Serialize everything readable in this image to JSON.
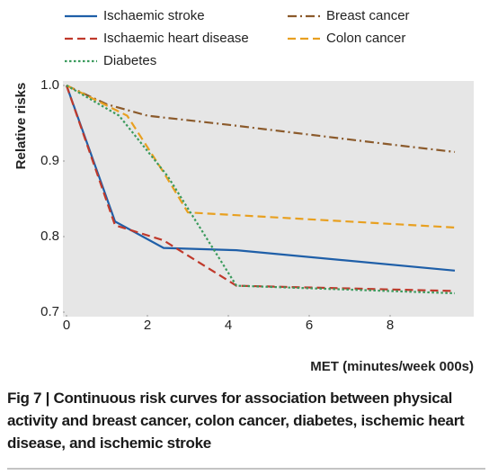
{
  "chart_data": {
    "type": "line",
    "ylabel": "Relative risks",
    "xlabel": "MET (minutes/week 000s)",
    "caption": "Fig 7 | Continuous risk curves for association between physical activity and breast cancer, colon cancer, diabetes, ischemic heart disease, and ischemic stroke",
    "xlim": [
      0,
      10
    ],
    "ylim": [
      0.7,
      1.0
    ],
    "xticks": [
      0,
      2,
      4,
      6,
      8
    ],
    "yticks": [
      {
        "value": 1,
        "label": "1.0"
      },
      0.9,
      0.8,
      0.7
    ],
    "series": [
      {
        "name": "Ischaemic stroke",
        "color": "#1f5fa8",
        "style": "solid",
        "x": [
          0,
          1.2,
          2.4,
          4.2,
          9.6
        ],
        "values": [
          1.0,
          0.82,
          0.785,
          0.782,
          0.755
        ]
      },
      {
        "name": "Breast cancer",
        "color": "#8b5a2b",
        "style": "dashdot",
        "x": [
          0,
          1,
          2,
          4,
          6,
          8,
          9.6
        ],
        "values": [
          1.0,
          0.975,
          0.96,
          0.948,
          0.935,
          0.922,
          0.912
        ]
      },
      {
        "name": "Ischaemic heart disease",
        "color": "#c0392b",
        "style": "dashed",
        "x": [
          0,
          1.2,
          2.4,
          4.2,
          9.6
        ],
        "values": [
          1.0,
          0.815,
          0.795,
          0.735,
          0.728
        ]
      },
      {
        "name": "Colon cancer",
        "color": "#e8a020",
        "style": "dashed",
        "x": [
          0,
          1.5,
          2.4,
          3,
          9.6
        ],
        "values": [
          1.0,
          0.96,
          0.885,
          0.832,
          0.812
        ]
      },
      {
        "name": "Diabetes",
        "color": "#3a9a5c",
        "style": "dotted",
        "x": [
          0,
          1.3,
          2.5,
          4.2,
          9.6
        ],
        "values": [
          1.0,
          0.96,
          0.88,
          0.735,
          0.725
        ]
      }
    ]
  }
}
